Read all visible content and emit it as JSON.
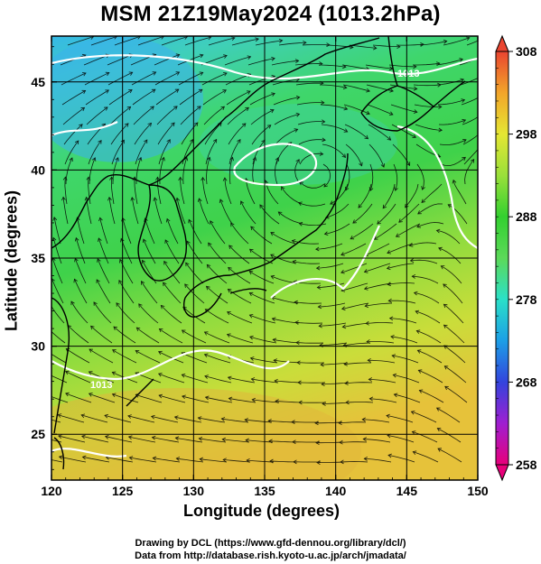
{
  "title": "MSM 21Z19May2024 (1013.2hPa)",
  "axes": {
    "xlabel": "Longitude (degrees)",
    "ylabel": "Latitude  (degrees)",
    "xlim": [
      120,
      150
    ],
    "ylim": [
      22.4,
      47.6
    ],
    "xticks": [
      "120",
      "125",
      "130",
      "135",
      "140",
      "145",
      "150"
    ],
    "yticks": [
      "25",
      "30",
      "35",
      "40",
      "45"
    ]
  },
  "colorbar": {
    "range": [
      258,
      308
    ],
    "ticks": [
      "308",
      "298",
      "288",
      "278",
      "268",
      "258"
    ],
    "colors": [
      "#e8007a",
      "#9f1fd1",
      "#3344dd",
      "#1c9fe6",
      "#2be0c8",
      "#5cd959",
      "#33d030",
      "#9ae03a",
      "#e5e633",
      "#f2a52a",
      "#ea4530"
    ]
  },
  "credits": {
    "line1": "Drawing by DCL (https://www.gfd-dennou.org/library/dcl/)",
    "line2": "Data from http://database.rish.kyoto-u.ac.jp/arch/jmadata/"
  },
  "contour_label": "1013",
  "map_colors": {
    "cold": "#36b9e6",
    "cool": "#3fd8a4",
    "mid": "#3fd24a",
    "warm": "#b4e03a",
    "hot": "#e0c93a",
    "land": "#000000",
    "isobar": "#ffffff"
  }
}
